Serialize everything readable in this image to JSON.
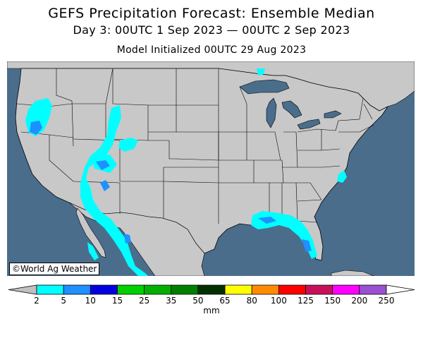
{
  "header": {
    "title": "GEFS Precipitation Forecast: Ensemble Median",
    "period": "Day 3: 00UTC 1 Sep 2023 — 00UTC 2 Sep 2023",
    "init": "Model Initialized 00UTC 29 Aug 2023"
  },
  "map": {
    "credit": "©World Ag Weather",
    "colors": {
      "ocean": "#4a6d8c",
      "land": "#c8c8c8",
      "lakes": "#4a6d8c"
    }
  },
  "legend": {
    "unit": "mm",
    "ticks": [
      "2",
      "5",
      "10",
      "15",
      "25",
      "35",
      "50",
      "65",
      "80",
      "100",
      "125",
      "150",
      "200",
      "250"
    ],
    "colors": [
      "#00ffff",
      "#1e90ff",
      "#0000e0",
      "#00d000",
      "#00b000",
      "#008000",
      "#003000",
      "#ffff00",
      "#ff8c00",
      "#ff0000",
      "#c8105a",
      "#ff00ff",
      "#9a50d0"
    ],
    "under_color": "#c0c0c0",
    "over_color": "#ffffff"
  }
}
